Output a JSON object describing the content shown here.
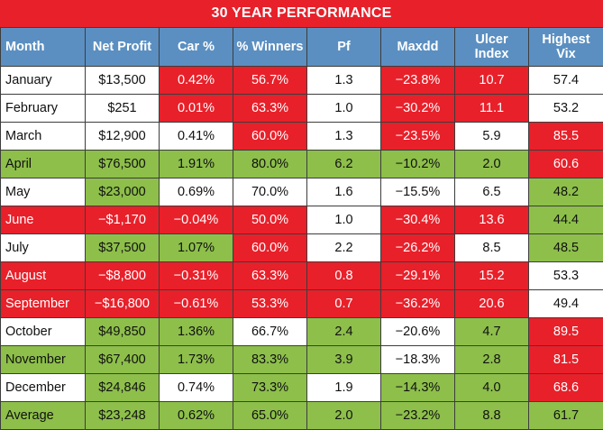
{
  "title": "30 YEAR PERFORMANCE",
  "colors": {
    "red": "#e8202a",
    "green": "#8dbf4a",
    "white": "#ffffff",
    "header_blue": "#5b8fc1"
  },
  "columns": [
    "Month",
    "Net Profit",
    "Car %",
    "% Winners",
    "Pf",
    "Maxdd",
    "Ulcer Index",
    "Highest Vix"
  ],
  "rows": [
    {
      "cells": [
        "January",
        "$13,500",
        "0.42%",
        "56.7%",
        "1.3",
        "−23.8%",
        "10.7",
        "57.4"
      ],
      "shade": [
        "w",
        "w",
        "r",
        "r",
        "w",
        "r",
        "r",
        "w"
      ]
    },
    {
      "cells": [
        "February",
        "$251",
        "0.01%",
        "63.3%",
        "1.0",
        "−30.2%",
        "11.1",
        "53.2"
      ],
      "shade": [
        "w",
        "w",
        "r",
        "r",
        "w",
        "r",
        "r",
        "w"
      ]
    },
    {
      "cells": [
        "March",
        "$12,900",
        "0.41%",
        "60.0%",
        "1.3",
        "−23.5%",
        "5.9",
        "85.5"
      ],
      "shade": [
        "w",
        "w",
        "w",
        "r",
        "w",
        "r",
        "w",
        "r"
      ]
    },
    {
      "cells": [
        "April",
        "$76,500",
        "1.91%",
        "80.0%",
        "6.2",
        "−10.2%",
        "2.0",
        "60.6"
      ],
      "shade": [
        "g",
        "g",
        "g",
        "g",
        "g",
        "g",
        "g",
        "r"
      ]
    },
    {
      "cells": [
        "May",
        "$23,000",
        "0.69%",
        "70.0%",
        "1.6",
        "−15.5%",
        "6.5",
        "48.2"
      ],
      "shade": [
        "w",
        "g",
        "w",
        "w",
        "w",
        "w",
        "w",
        "g"
      ]
    },
    {
      "cells": [
        "June",
        "−$1,170",
        "−0.04%",
        "50.0%",
        "1.0",
        "−30.4%",
        "13.6",
        "44.4"
      ],
      "shade": [
        "r",
        "r",
        "r",
        "r",
        "w",
        "r",
        "r",
        "g"
      ]
    },
    {
      "cells": [
        "July",
        "$37,500",
        "1.07%",
        "60.0%",
        "2.2",
        "−26.2%",
        "8.5",
        "48.5"
      ],
      "shade": [
        "w",
        "g",
        "g",
        "r",
        "w",
        "r",
        "w",
        "g"
      ]
    },
    {
      "cells": [
        "August",
        "−$8,800",
        "−0.31%",
        "63.3%",
        "0.8",
        "−29.1%",
        "15.2",
        "53.3"
      ],
      "shade": [
        "r",
        "r",
        "r",
        "r",
        "r",
        "r",
        "r",
        "w"
      ]
    },
    {
      "cells": [
        "September",
        "−$16,800",
        "−0.61%",
        "53.3%",
        "0.7",
        "−36.2%",
        "20.6",
        "49.4"
      ],
      "shade": [
        "r",
        "r",
        "r",
        "r",
        "r",
        "r",
        "r",
        "w"
      ]
    },
    {
      "cells": [
        "October",
        "$49,850",
        "1.36%",
        "66.7%",
        "2.4",
        "−20.6%",
        "4.7",
        "89.5"
      ],
      "shade": [
        "w",
        "g",
        "g",
        "w",
        "g",
        "w",
        "g",
        "r"
      ]
    },
    {
      "cells": [
        "November",
        "$67,400",
        "1.73%",
        "83.3%",
        "3.9",
        "−18.3%",
        "2.8",
        "81.5"
      ],
      "shade": [
        "g",
        "g",
        "g",
        "g",
        "g",
        "w",
        "g",
        "r"
      ]
    },
    {
      "cells": [
        "December",
        "$24,846",
        "0.74%",
        "73.3%",
        "1.9",
        "−14.3%",
        "4.0",
        "68.6"
      ],
      "shade": [
        "w",
        "g",
        "w",
        "g",
        "w",
        "g",
        "g",
        "r"
      ]
    },
    {
      "cells": [
        "Average",
        "$23,248",
        "0.62%",
        "65.0%",
        "2.0",
        "−23.2%",
        "8.8",
        "61.7"
      ],
      "shade": [
        "g",
        "g",
        "g",
        "g",
        "g",
        "g",
        "g",
        "g"
      ]
    }
  ]
}
